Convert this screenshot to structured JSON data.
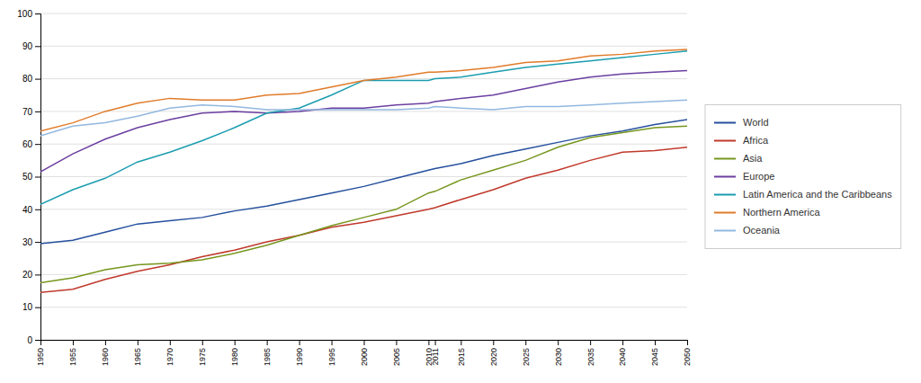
{
  "chart_data": {
    "type": "line",
    "x": [
      1950,
      1955,
      1960,
      1965,
      1970,
      1975,
      1980,
      1985,
      1990,
      1995,
      2000,
      2005,
      2010,
      2011,
      2015,
      2020,
      2025,
      2030,
      2035,
      2040,
      2045,
      2050
    ],
    "xlim": [
      1950,
      2050
    ],
    "xticks": [
      1950,
      1955,
      1960,
      1965,
      1970,
      1975,
      1980,
      1985,
      1990,
      1995,
      2000,
      2005,
      2010,
      2011,
      2015,
      2020,
      2025,
      2030,
      2035,
      2040,
      2045,
      2050
    ],
    "ylim": [
      0,
      100
    ],
    "yticks": [
      0,
      10,
      20,
      30,
      40,
      50,
      60,
      70,
      80,
      90,
      100
    ],
    "grid": true,
    "legend": "right",
    "series": [
      {
        "name": "World",
        "color": "#254F9E",
        "values": [
          29.5,
          30.5,
          33.0,
          35.5,
          36.5,
          37.5,
          39.5,
          41.0,
          43.0,
          45.0,
          47.0,
          49.5,
          52.0,
          52.5,
          54.0,
          56.5,
          58.5,
          60.5,
          62.5,
          64.0,
          66.0,
          67.5
        ]
      },
      {
        "name": "Africa",
        "color": "#C0392B",
        "values": [
          14.5,
          15.5,
          18.5,
          21.0,
          23.0,
          25.5,
          27.5,
          30.0,
          32.0,
          34.5,
          36.0,
          38.0,
          40.0,
          40.5,
          43.0,
          46.0,
          49.5,
          52.0,
          55.0,
          57.5,
          58.0,
          59.0
        ]
      },
      {
        "name": "Asia",
        "color": "#76961E",
        "values": [
          17.5,
          19.0,
          21.5,
          23.0,
          23.5,
          24.5,
          26.5,
          29.0,
          32.0,
          35.0,
          37.5,
          40.0,
          45.0,
          45.5,
          49.0,
          52.0,
          55.0,
          59.0,
          62.0,
          63.5,
          65.0,
          65.5
        ]
      },
      {
        "name": "Europe",
        "color": "#6B3FA0",
        "values": [
          51.5,
          57.0,
          61.5,
          65.0,
          67.5,
          69.5,
          70.0,
          69.5,
          70.0,
          71.0,
          71.0,
          72.0,
          72.5,
          73.0,
          74.0,
          75.0,
          77.0,
          79.0,
          80.5,
          81.5,
          82.0,
          82.5
        ]
      },
      {
        "name": "Latin America and the Caribbeans",
        "color": "#1A9DAF",
        "values": [
          41.5,
          46.0,
          49.5,
          54.5,
          57.5,
          61.0,
          65.0,
          69.5,
          71.0,
          75.0,
          79.5,
          79.5,
          79.5,
          80.0,
          80.5,
          82.0,
          83.5,
          84.5,
          85.5,
          86.5,
          87.5,
          88.5
        ]
      },
      {
        "name": "Northern America",
        "color": "#E07B2A",
        "values": [
          64.0,
          66.5,
          70.0,
          72.5,
          74.0,
          73.5,
          73.5,
          75.0,
          75.5,
          77.5,
          79.5,
          80.5,
          82.0,
          82.0,
          82.5,
          83.5,
          85.0,
          85.5,
          87.0,
          87.5,
          88.5,
          89.0
        ]
      },
      {
        "name": "Oceania",
        "color": "#92B8E0",
        "values": [
          62.5,
          65.5,
          66.5,
          68.5,
          71.0,
          72.0,
          71.5,
          70.5,
          70.5,
          70.5,
          70.5,
          70.5,
          71.0,
          71.5,
          71.0,
          70.5,
          71.5,
          71.5,
          72.0,
          72.5,
          73.0,
          73.5
        ]
      }
    ]
  }
}
